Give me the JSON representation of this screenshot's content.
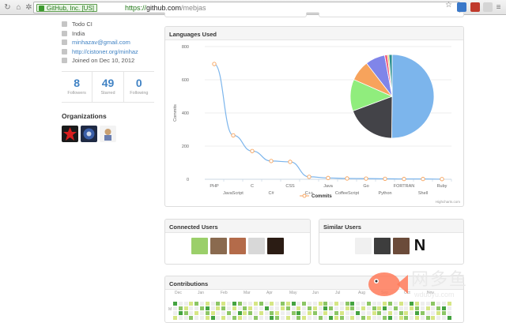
{
  "browser": {
    "ev_label": "GitHub, Inc. [US]",
    "url_scheme": "https://",
    "url_host": "github.com",
    "url_path": "/mebjas"
  },
  "profile": {
    "info": [
      {
        "icon": "briefcase-icon",
        "text": "Todo CI",
        "link": false
      },
      {
        "icon": "location-icon",
        "text": "India",
        "link": false
      },
      {
        "icon": "mail-icon",
        "text": "minhazav@gmail.com",
        "link": true
      },
      {
        "icon": "link-icon",
        "text": "http://cistoner.org/minhaz",
        "link": true
      },
      {
        "icon": "clock-icon",
        "text": "Joined on Dec 10, 2012",
        "link": false
      }
    ],
    "stats": [
      {
        "value": "8",
        "label": "Followers"
      },
      {
        "value": "49",
        "label": "Starred"
      },
      {
        "value": "0",
        "label": "Following"
      }
    ],
    "organizations_title": "Organizations"
  },
  "languages_panel": {
    "title": "Languages Used",
    "credit": "Highcharts.com"
  },
  "chart_data": {
    "type": "line",
    "title": "",
    "ylabel": "Commits",
    "xlabel": "",
    "ylim": [
      0,
      800
    ],
    "yticks": [
      0,
      200,
      400,
      600,
      800
    ],
    "grid": true,
    "legend": "bottom-center",
    "categories": [
      "PHP",
      "JavaScript",
      "C",
      "C#",
      "CSS",
      "C++",
      "Java",
      "CoffeeScript",
      "Go",
      "Python",
      "FORTRAN",
      "Shell",
      "Ruby"
    ],
    "series": [
      {
        "name": "Commits",
        "values": [
          695,
          265,
          170,
          110,
          105,
          15,
          8,
          5,
          4,
          3,
          2,
          2,
          1
        ]
      }
    ],
    "pie": {
      "type": "pie",
      "slices": [
        {
          "label": "PHP",
          "value": 695
        },
        {
          "label": "JavaScript",
          "value": 265
        },
        {
          "label": "C",
          "value": 170
        },
        {
          "label": "C#",
          "value": 110
        },
        {
          "label": "CSS",
          "value": 105
        },
        {
          "label": "C++",
          "value": 15
        },
        {
          "label": "Java",
          "value": 8
        },
        {
          "label": "Other",
          "value": 17
        }
      ]
    }
  },
  "connected_panel": {
    "title": "Connected Users"
  },
  "similar_panel": {
    "title": "Similar Users"
  },
  "contributions_panel": {
    "title": "Contributions",
    "months": [
      "Dec",
      "Jan",
      "Feb",
      "Mar",
      "Apr",
      "May",
      "Jun",
      "Jul",
      "Aug",
      "Sep",
      "Oct",
      "Nov"
    ],
    "day_label": "M"
  },
  "watermark": {
    "text": "网多鱼",
    "url": "wduoyu.com"
  },
  "colors": {
    "accent": "#4183c4",
    "line": "#7cb5ec",
    "marker": "#f7a35c",
    "pie": [
      "#7cb5ec",
      "#434348",
      "#90ed7d",
      "#f7a35c",
      "#8085e9",
      "#f15c80",
      "#e4d354",
      "#2b908f"
    ],
    "contrib": [
      "#eeeeee",
      "#d6e685",
      "#8cc665",
      "#44a340",
      "#1e6823"
    ]
  }
}
